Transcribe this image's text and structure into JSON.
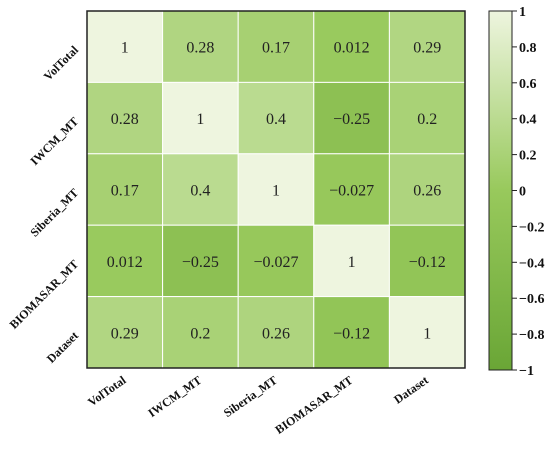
{
  "chart_data": {
    "type": "heatmap",
    "title": "",
    "xlabel": "",
    "ylabel": "",
    "x_labels": [
      "VolTotal",
      "IWCM_MT",
      "Siberia_MT",
      "BIOMASAR_MT",
      "Dataset"
    ],
    "y_labels": [
      "VolTotal",
      "IWCM_MT",
      "Siberia_MT",
      "BIOMASAR_MT",
      "Dataset"
    ],
    "values": [
      [
        1,
        0.28,
        0.17,
        0.012,
        0.29
      ],
      [
        0.28,
        1,
        0.4,
        -0.25,
        0.2
      ],
      [
        0.17,
        0.4,
        1,
        -0.027,
        0.26
      ],
      [
        0.012,
        -0.25,
        -0.027,
        1,
        -0.12
      ],
      [
        0.29,
        0.2,
        0.26,
        -0.12,
        1
      ]
    ],
    "cell_labels": [
      [
        "1",
        "0.28",
        "0.17",
        "0.012",
        "0.29"
      ],
      [
        "0.28",
        "1",
        "0.4",
        "−0.25",
        "0.2"
      ],
      [
        "0.17",
        "0.4",
        "1",
        "−0.027",
        "0.26"
      ],
      [
        "0.012",
        "−0.25",
        "−0.027",
        "1",
        "−0.12"
      ],
      [
        "0.29",
        "0.2",
        "0.26",
        "−0.12",
        "1"
      ]
    ],
    "colorbar": {
      "range": [
        -1,
        1
      ],
      "ticks": [
        1,
        0.8,
        0.6,
        0.4,
        0.2,
        0,
        -0.2,
        -0.4,
        -0.6,
        -0.8,
        -1
      ],
      "tick_labels": [
        "1",
        "0.8",
        "0.6",
        "0.4",
        "0.2",
        "0",
        "−0.2",
        "−0.4",
        "−0.6",
        "−0.8",
        "−1"
      ],
      "color_low": "#6aa636",
      "color_mid": "#98c95c",
      "color_high": "#eef5df",
      "position": "right"
    },
    "colors": {
      "cell_border": "#ffffff",
      "frame": "#222222"
    },
    "grid": false,
    "legend": "colorbar-right"
  }
}
